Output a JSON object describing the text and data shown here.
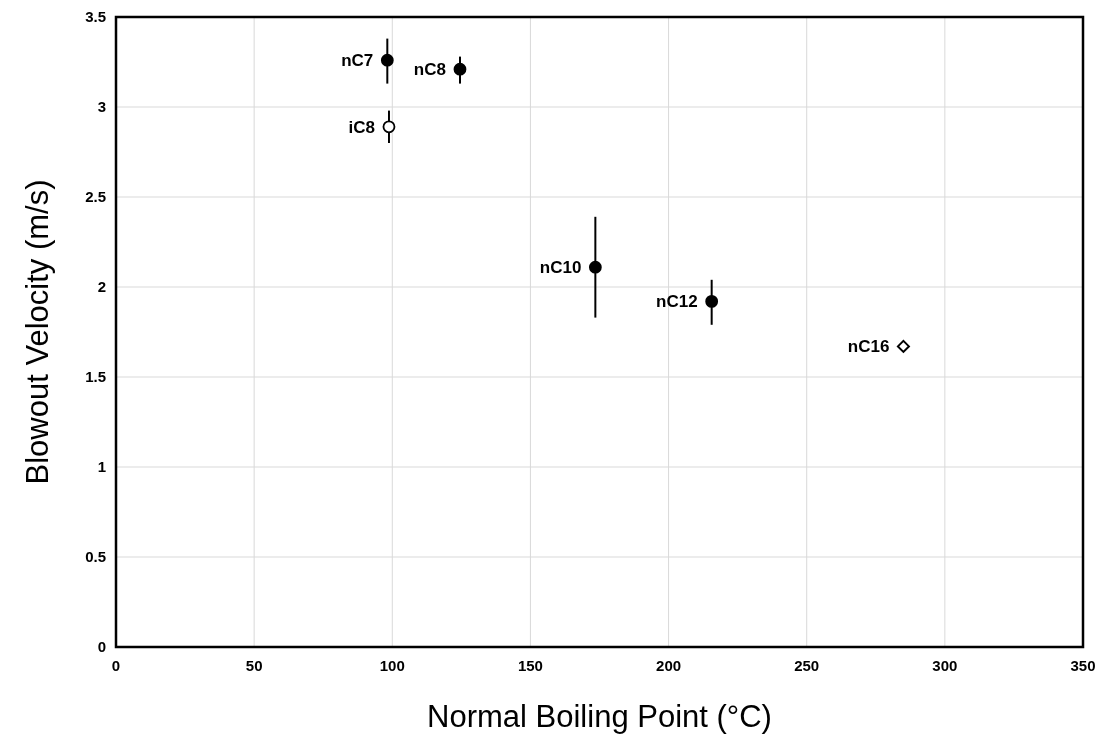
{
  "chart_data": {
    "type": "scatter",
    "xlabel": "Normal Boiling Point (°C)",
    "ylabel": "Blowout Velocity (m/s)",
    "xlim": [
      0,
      350
    ],
    "xticks": [
      0,
      50,
      100,
      150,
      200,
      250,
      300,
      350
    ],
    "ylim": [
      0,
      3.5
    ],
    "yticks": [
      0,
      0.5,
      1,
      1.5,
      2,
      2.5,
      3,
      3.5
    ],
    "grid": true,
    "series": [
      {
        "color": "#000000",
        "marker": "circle",
        "x": [
          98.2,
          124.5,
          173.5,
          215.6
        ],
        "values": [
          3.26,
          3.21,
          2.11,
          1.92
        ],
        "errors": [
          [
            3.13,
            3.38
          ],
          [
            3.13,
            3.28
          ],
          [
            1.83,
            2.39
          ],
          [
            1.79,
            2.04
          ]
        ]
      },
      {
        "color": "#ffffff",
        "marker": "circle",
        "x": [
          98.8
        ],
        "values": [
          2.89
        ],
        "errors": [
          [
            2.8,
            2.98
          ]
        ]
      },
      {
        "color": "#ffffff",
        "marker": "diamond",
        "x": [
          285
        ],
        "values": [
          1.67
        ],
        "errors": [
          null
        ]
      }
    ],
    "annotations": [
      {
        "text": "nC7",
        "x": 98.2,
        "y": 3.26
      },
      {
        "text": "nC8",
        "x": 124.5,
        "y": 3.21
      },
      {
        "text": "iC8",
        "x": 98.8,
        "y": 2.89
      },
      {
        "text": "nC10",
        "x": 173.5,
        "y": 2.11
      },
      {
        "text": "nC12",
        "x": 215.6,
        "y": 1.92
      },
      {
        "text": "nC16",
        "x": 285,
        "y": 1.67
      }
    ]
  }
}
